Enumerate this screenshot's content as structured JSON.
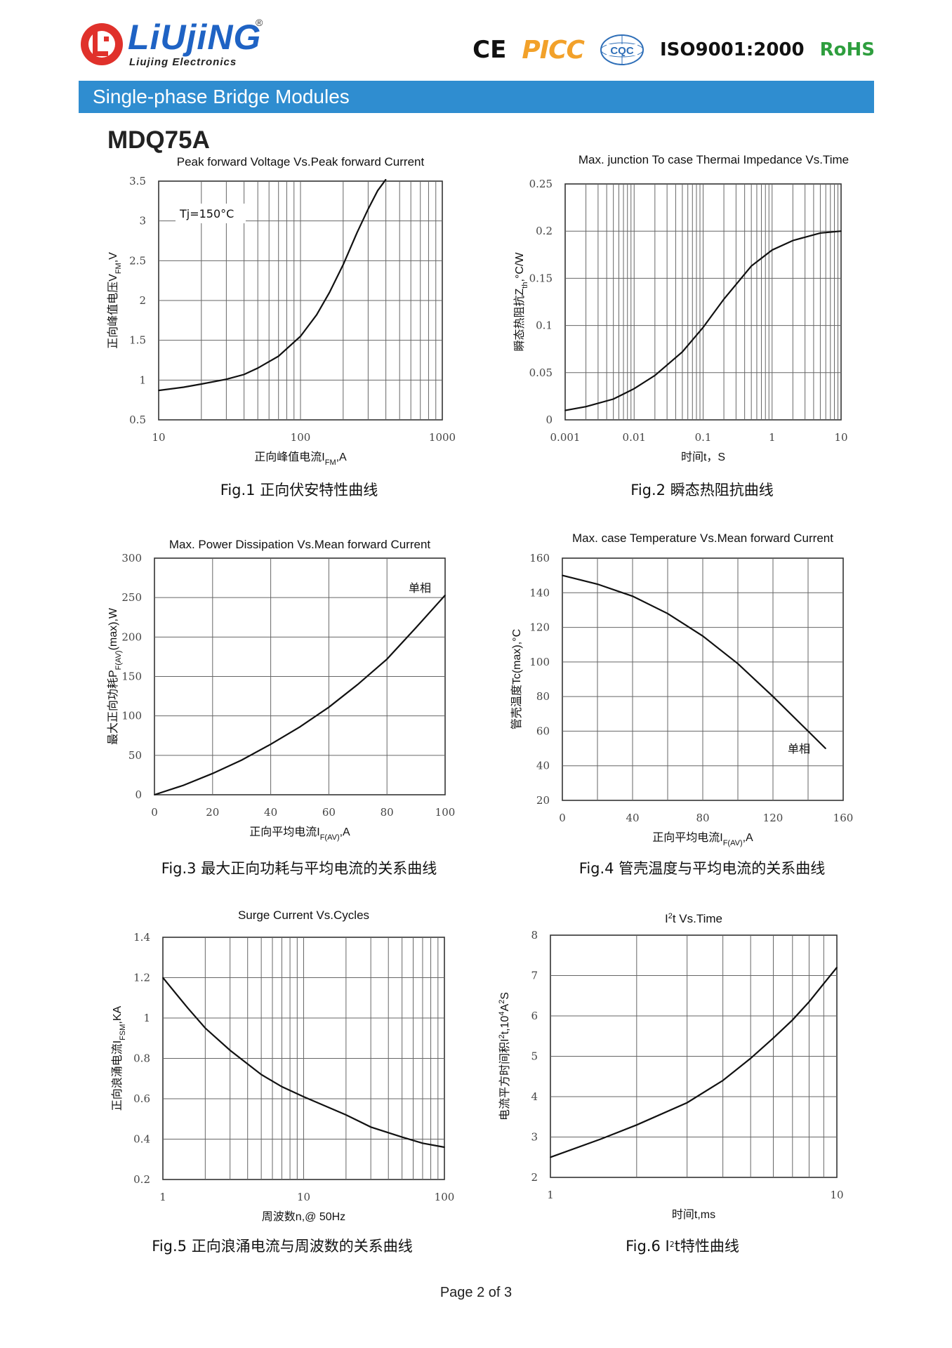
{
  "header": {
    "brand": "LiUjiNG",
    "brand_reg": "®",
    "brand_sub": "Liujing Electronics",
    "logo_color": "#E0312B",
    "certs": {
      "ce": "CE",
      "picc": "PICC",
      "cqc": "CQC",
      "iso": "ISO9001:2000",
      "rohs": "RoHS"
    }
  },
  "banner": {
    "text": "Single-phase Bridge Modules",
    "color": "#2F8DD0"
  },
  "model": "MDQ75A",
  "footer": "Page 2 of 3",
  "chart_data": [
    {
      "type": "line",
      "title": "Peak forward Voltage Vs.Peak forward Current",
      "xlabel": "正向峰值电流I",
      "xlabel_sub": "FM",
      "xlabel_suffix": ",A",
      "ylabel": "正向峰值电压V",
      "ylabel_sub": "FM",
      "ylabel_suffix": ",V",
      "xscale": "log",
      "xlim": [
        10,
        1000
      ],
      "ylim": [
        0.5,
        3.5
      ],
      "xticks": [
        "10",
        "100",
        "1000"
      ],
      "yticks": [
        "0.5",
        "1",
        "1.5",
        "2",
        "2.5",
        "3",
        "3.5"
      ],
      "annotation": "Tj=150°C",
      "caption": "Fig.1 正向伏安特性曲线",
      "grid": true,
      "series": [
        {
          "x": [
            10,
            15,
            20,
            30,
            40,
            50,
            70,
            100,
            130,
            160,
            200,
            250,
            300,
            350,
            400
          ],
          "y": [
            0.87,
            0.91,
            0.95,
            1.01,
            1.07,
            1.15,
            1.3,
            1.55,
            1.82,
            2.1,
            2.45,
            2.85,
            3.15,
            3.38,
            3.52
          ]
        }
      ]
    },
    {
      "type": "line",
      "title": "Max. junction To case Thermai Impedance Vs.Time",
      "xlabel": "时间t，S",
      "ylabel": "瞬态热阻抗Z",
      "ylabel_sub": "th",
      "ylabel_suffix": ",°C/W",
      "xscale": "log",
      "xlim": [
        0.001,
        10
      ],
      "ylim": [
        0,
        0.25
      ],
      "xticks": [
        "0.001",
        "0.01",
        "0.1",
        "1",
        "10"
      ],
      "yticks": [
        "0",
        "0.05",
        "0.1",
        "0.15",
        "0.2",
        "0.25"
      ],
      "caption": "Fig.2 瞬态热阻抗曲线",
      "grid": true,
      "series": [
        {
          "x": [
            0.001,
            0.002,
            0.005,
            0.01,
            0.02,
            0.05,
            0.1,
            0.2,
            0.5,
            1,
            2,
            5,
            10
          ],
          "y": [
            0.01,
            0.014,
            0.022,
            0.033,
            0.047,
            0.072,
            0.098,
            0.128,
            0.163,
            0.18,
            0.19,
            0.198,
            0.2
          ]
        }
      ]
    },
    {
      "type": "line",
      "title": "Max. Power Dissipation Vs.Mean forward Current",
      "xlabel": "正向平均电流I",
      "xlabel_sub": "F(AV)",
      "xlabel_suffix": ",A",
      "ylabel": "最大正向功耗P",
      "ylabel_sub": "F(AV)",
      "ylabel_suffix": "(max),W",
      "xlim": [
        0,
        100
      ],
      "ylim": [
        0,
        300
      ],
      "xticks": [
        "0",
        "20",
        "40",
        "60",
        "80",
        "100"
      ],
      "yticks": [
        "0",
        "50",
        "100",
        "150",
        "200",
        "250",
        "300"
      ],
      "annotation": "单相",
      "caption": "Fig.3 最大正向功耗与平均电流的关系曲线",
      "grid": true,
      "series": [
        {
          "x": [
            0,
            10,
            20,
            30,
            40,
            50,
            60,
            70,
            80,
            90,
            100
          ],
          "y": [
            0,
            12,
            27,
            44,
            64,
            86,
            111,
            140,
            172,
            212,
            253
          ]
        }
      ]
    },
    {
      "type": "line",
      "title": "Max. case Temperature Vs.Mean forward Current",
      "xlabel": "正向平均电流I",
      "xlabel_sub": "F(AV)",
      "xlabel_suffix": ",A",
      "ylabel": "管壳温度Tc(max),°C",
      "xlim": [
        0,
        160
      ],
      "ylim": [
        20,
        160
      ],
      "xticks": [
        "0",
        "40",
        "80",
        "120",
        "160"
      ],
      "yticks": [
        "20",
        "40",
        "60",
        "80",
        "100",
        "120",
        "140",
        "160"
      ],
      "annotation": "单相",
      "caption": "Fig.4 管壳温度与平均电流的关系曲线",
      "grid": true,
      "series": [
        {
          "x": [
            0,
            20,
            40,
            60,
            80,
            100,
            120,
            140,
            150
          ],
          "y": [
            150,
            145,
            138,
            128,
            115,
            99,
            80,
            60,
            50
          ]
        }
      ]
    },
    {
      "type": "line",
      "title": "Surge Current Vs.Cycles",
      "xlabel": "周波数n,@ 50Hz",
      "ylabel": "正向浪涌电流I",
      "ylabel_sub": "FSM",
      "ylabel_suffix": ",KA",
      "xscale": "log",
      "xlim": [
        1,
        100
      ],
      "ylim": [
        0.2,
        1.4
      ],
      "xticks": [
        "1",
        "10",
        "100"
      ],
      "yticks": [
        "0.2",
        "0.4",
        "0.6",
        "0.8",
        "1",
        "1.2",
        "1.4"
      ],
      "caption": "Fig.5 正向浪涌电流与周波数的关系曲线",
      "grid": true,
      "series": [
        {
          "x": [
            1,
            1.5,
            2,
            3,
            5,
            7,
            10,
            20,
            30,
            50,
            70,
            100
          ],
          "y": [
            1.2,
            1.05,
            0.95,
            0.84,
            0.72,
            0.66,
            0.61,
            0.52,
            0.46,
            0.41,
            0.38,
            0.36
          ]
        }
      ]
    },
    {
      "type": "line",
      "title_main": "I",
      "title_sup": "2",
      "title_rest": "t  Vs.Time",
      "xlabel": "时间t,ms",
      "ylabel": "电流平方时间积I",
      "ylabel_sup": "2",
      "ylabel_mid": "t,10",
      "ylabel_sup2": "4",
      "ylabel_suffix": "A",
      "ylabel_sup3": "2",
      "ylabel_end": "S",
      "xscale": "log",
      "xlim": [
        1,
        10
      ],
      "ylim": [
        2,
        8
      ],
      "xticks": [
        "1",
        "10"
      ],
      "yticks": [
        "2",
        "3",
        "4",
        "5",
        "6",
        "7",
        "8"
      ],
      "caption_a": "Fig.6 I",
      "caption_sup": "2",
      "caption_b": "t特性曲线",
      "grid": true,
      "series": [
        {
          "x": [
            1,
            1.5,
            2,
            3,
            4,
            5,
            6,
            7,
            8,
            9,
            10
          ],
          "y": [
            2.5,
            2.95,
            3.3,
            3.85,
            4.4,
            4.95,
            5.45,
            5.9,
            6.35,
            6.8,
            7.2
          ]
        }
      ]
    }
  ]
}
